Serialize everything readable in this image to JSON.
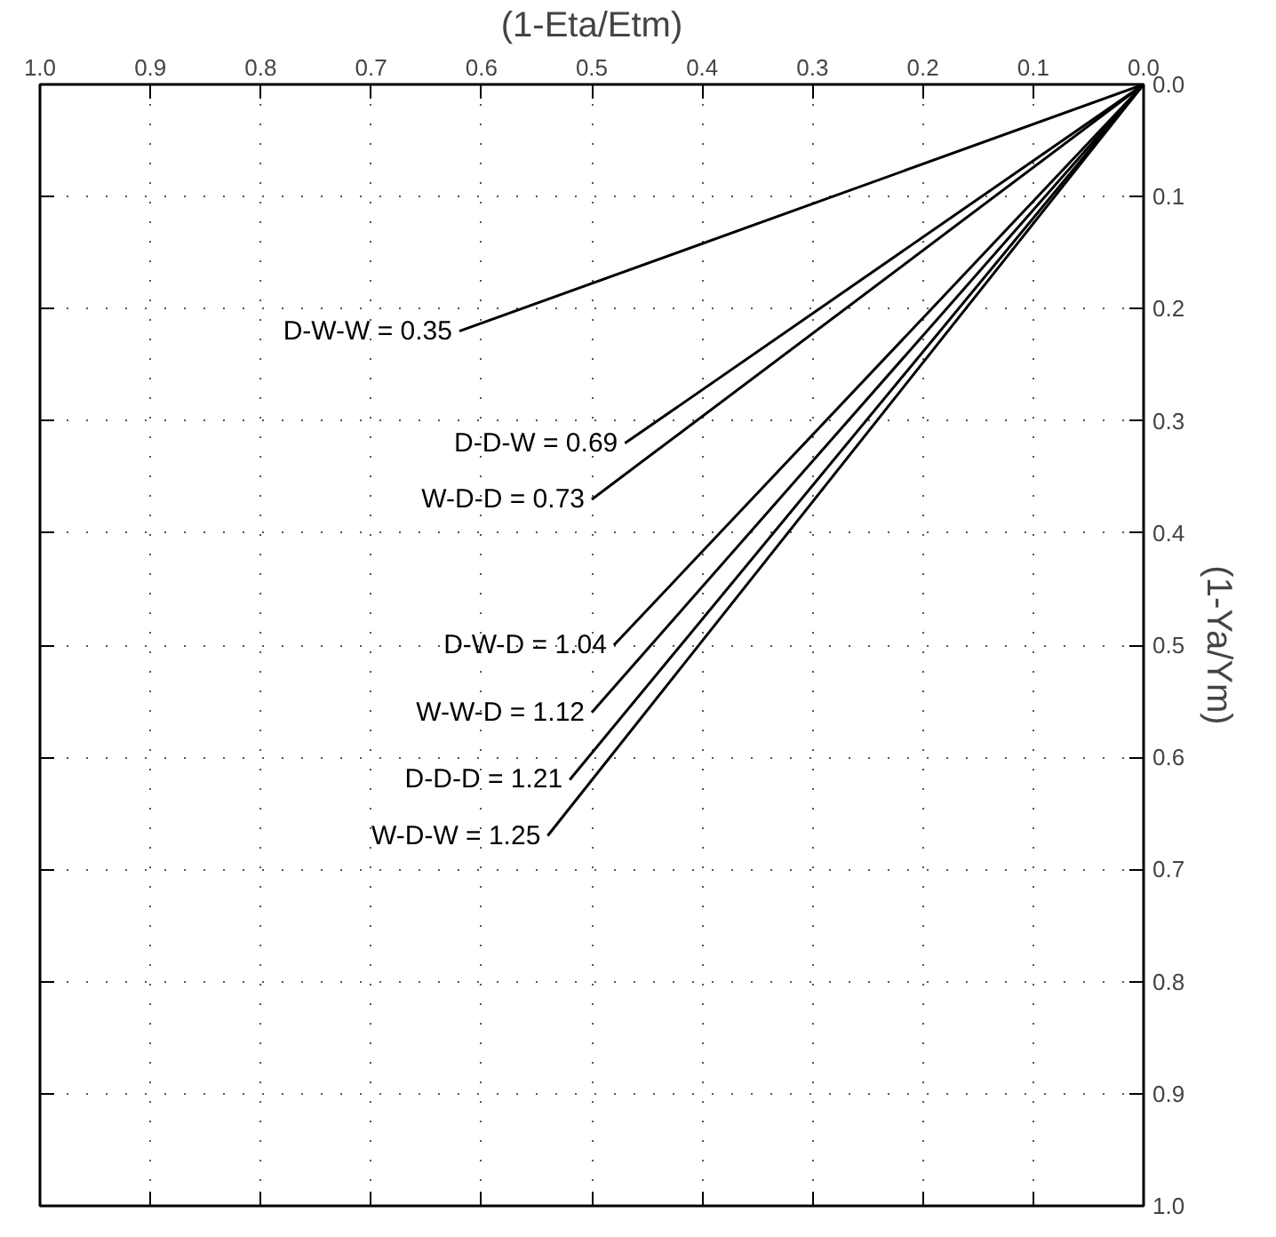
{
  "chart_data": {
    "type": "line",
    "xlabel": "(1-Eta/Etm)",
    "ylabel": "(1-Ya/Ym)",
    "xlim": [
      1.0,
      0.0
    ],
    "xticks": [
      {
        "value": 1.0,
        "label": "1.0"
      },
      0.9,
      0.8,
      0.7,
      0.6,
      0.5,
      0.4,
      0.3,
      0.2,
      0.1,
      {
        "value": 0.0,
        "label": "0.0"
      }
    ],
    "ylim": [
      1.0,
      0.0
    ],
    "yticks": [
      {
        "value": 0.0,
        "label": "0.0"
      },
      0.1,
      0.2,
      0.3,
      0.4,
      0.5,
      0.6,
      0.7,
      0.8,
      0.9,
      {
        "value": 1.0,
        "label": "1.0"
      }
    ],
    "grid": true,
    "marker": "none",
    "line_style": "solid",
    "series": [
      {
        "name": "D-W-W = 0.35",
        "color": "#000000",
        "x": [
          0.0,
          0.62
        ],
        "values": [
          0.0,
          0.22
        ]
      },
      {
        "name": "D-D-W = 0.69",
        "color": "#000000",
        "x": [
          0.0,
          0.47
        ],
        "values": [
          0.0,
          0.32
        ]
      },
      {
        "name": "W-D-D = 0.73",
        "color": "#000000",
        "x": [
          0.0,
          0.5
        ],
        "values": [
          0.0,
          0.37
        ]
      },
      {
        "name": "D-W-D = 1.04",
        "color": "#000000",
        "x": [
          0.0,
          0.48
        ],
        "values": [
          0.0,
          0.5
        ]
      },
      {
        "name": "W-W-D = 1.12",
        "color": "#000000",
        "x": [
          0.0,
          0.5
        ],
        "values": [
          0.0,
          0.56
        ]
      },
      {
        "name": "D-D-D = 1.21",
        "color": "#000000",
        "x": [
          0.0,
          0.52
        ],
        "values": [
          0.0,
          0.62
        ]
      },
      {
        "name": "W-D-W = 1.25",
        "color": "#000000",
        "x": [
          0.0,
          0.54
        ],
        "values": [
          0.0,
          0.67
        ]
      }
    ]
  }
}
